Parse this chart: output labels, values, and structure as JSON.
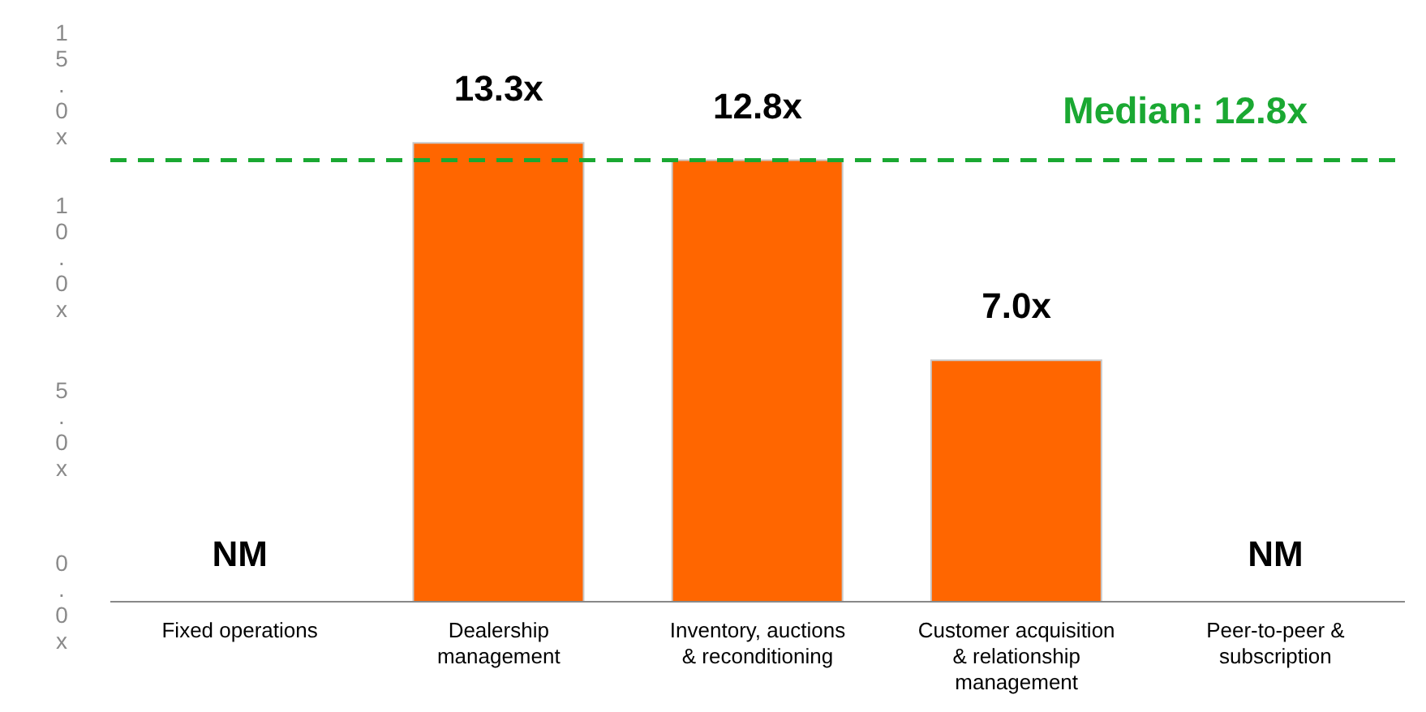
{
  "chart_data": {
    "type": "bar",
    "categories": [
      "Fixed operations",
      "Dealership management",
      "Inventory, auctions & reconditioning",
      "Customer acquisition & relationship management",
      "Peer-to-peer & subscription"
    ],
    "values": [
      null,
      13.3,
      12.8,
      7.0,
      null
    ],
    "color": "#ff6600",
    "value_labels": [
      "NM",
      "13.3x",
      "12.8x",
      "7.0x",
      "NM"
    ],
    "ylim": [
      0,
      15
    ],
    "yticks": [
      {
        "value": 0,
        "label": "0.0x"
      },
      {
        "value": 5,
        "label": "5.0x"
      },
      {
        "value": 10,
        "label": "10.0x"
      },
      {
        "value": 15,
        "label": "15.0x"
      }
    ],
    "ref_lines": [
      {
        "axis": "y",
        "value": 12.8,
        "label": "Median: 12.8x",
        "color": "#1aa832",
        "line_style": "dashed"
      }
    ],
    "grid": false
  }
}
